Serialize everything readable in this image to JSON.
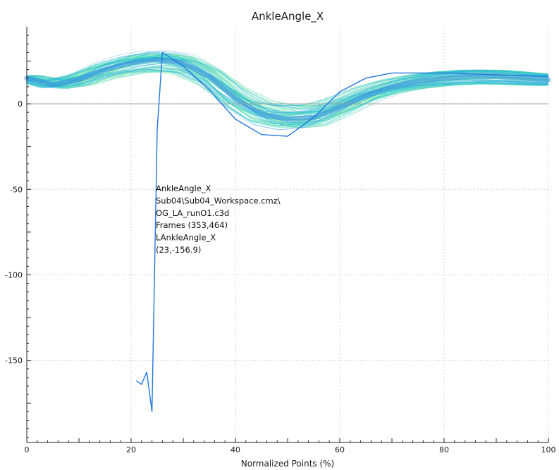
{
  "chart_data": {
    "type": "line",
    "title": "AnkleAngle_X",
    "xlabel": "Normalized Points (%)",
    "ylabel": "",
    "xlim": [
      0,
      100
    ],
    "ylim": [
      -198,
      45
    ],
    "x_ticks": [
      "0",
      "20",
      "40",
      "60",
      "80",
      "100"
    ],
    "y_ticks": [
      "0",
      "-50",
      "-100",
      "-150"
    ],
    "grid": true,
    "bundle": {
      "description": "many overlaid trial curves (green to blue gradient)",
      "mean_x": [
        0,
        5,
        10,
        15,
        20,
        25,
        30,
        35,
        40,
        45,
        50,
        55,
        60,
        65,
        70,
        75,
        80,
        85,
        90,
        95,
        100
      ],
      "mean_y": [
        15,
        11,
        14,
        20,
        24,
        26,
        24,
        16,
        3,
        -6,
        -9,
        -8,
        -2,
        5,
        10,
        13,
        15,
        16,
        16,
        15,
        14
      ],
      "colors": [
        "#88ee44",
        "#33dd99",
        "#22ccdd",
        "#3399ee"
      ]
    },
    "highlight_series": {
      "name": "LAnkleAngle_X",
      "color": "#2277dd",
      "x": [
        21,
        22,
        23,
        24,
        25,
        26,
        28,
        30,
        35,
        40,
        45,
        50,
        55,
        60,
        65,
        70,
        80,
        90,
        100
      ],
      "y": [
        -162,
        -164,
        -156.9,
        -180,
        -15,
        30,
        26,
        22,
        8,
        -9,
        -18,
        -19,
        -8,
        7,
        15,
        18,
        18,
        17,
        16
      ]
    },
    "tooltip": {
      "lines": [
        "AnkleAngle_X",
        "Sub04\\Sub04_Workspace.cmz\\",
        "OG_LA_runO1.c3d",
        "Frames (353,464)",
        "LAnkleAngle_X",
        "(23,-156.9)"
      ]
    }
  }
}
